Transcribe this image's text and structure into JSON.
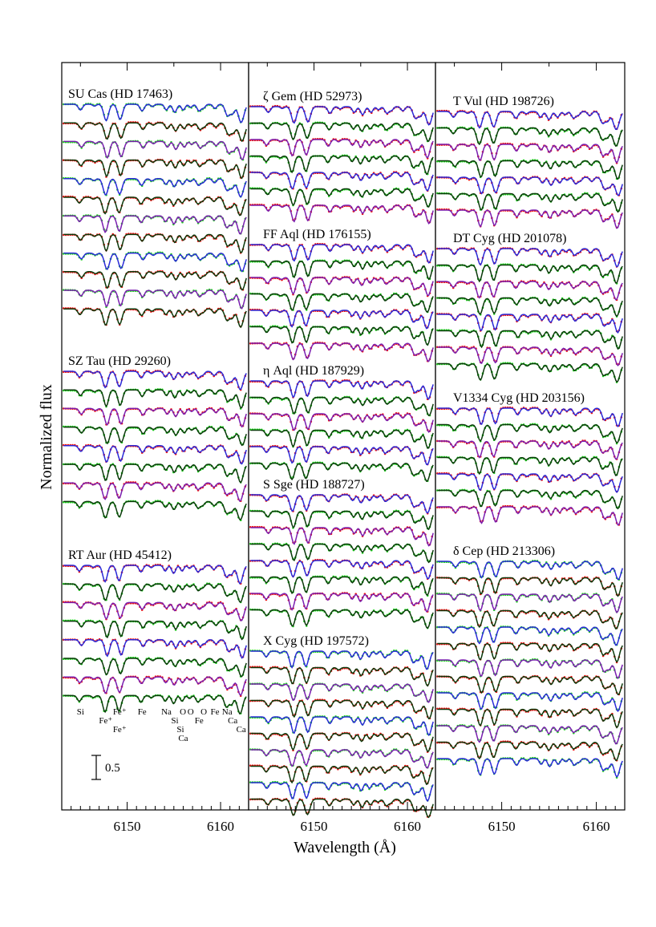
{
  "figure": {
    "ylabel": "Normalized flux",
    "xlabel": "Wavelength (Å)",
    "scale_bar_label": "0.5"
  },
  "colors": {
    "observed_green": "#1fd11f",
    "observed_red": "#ee1111",
    "model_blue": "#2a2ad8",
    "model_purple": "#7a1fb0",
    "model_dark": "#0c3a0c",
    "axes": "#000000"
  },
  "chart_data": [
    {
      "type": "line",
      "panel": "left",
      "xlim": [
        6143,
        6163
      ],
      "xticks": [
        6150,
        6160
      ],
      "xtick_labels": [
        "6150",
        "6160"
      ],
      "groups": [
        {
          "name": "SU Cas (HD 17463)",
          "n_spectra": 12,
          "ref_color": "green"
        },
        {
          "name": "SZ Tau (HD 29260)",
          "n_spectra": 8,
          "ref_color": "red"
        },
        {
          "name": "RT Aur (HD 45412)",
          "n_spectra": 8,
          "ref_color": "red"
        }
      ],
      "line_ids": [
        {
          "label": "Si",
          "wavelength": 6145.0
        },
        {
          "label": "Fe⁺",
          "wavelength": 6147.7
        },
        {
          "label": "Fe⁺",
          "wavelength": 6149.2
        },
        {
          "label": "Fe⁺",
          "wavelength": 6149.2
        },
        {
          "label": "Fe",
          "wavelength": 6151.6
        },
        {
          "label": "Na",
          "wavelength": 6154.2
        },
        {
          "label": "Si",
          "wavelength": 6155.1
        },
        {
          "label": "O",
          "wavelength": 6155.97
        },
        {
          "label": "Si",
          "wavelength": 6155.7
        },
        {
          "label": "Ca",
          "wavelength": 6156.0
        },
        {
          "label": "O",
          "wavelength": 6156.8
        },
        {
          "label": "O",
          "wavelength": 6158.2
        },
        {
          "label": "Fe",
          "wavelength": 6157.7
        },
        {
          "label": "Fe",
          "wavelength": 6159.4
        },
        {
          "label": "Na",
          "wavelength": 6160.7
        },
        {
          "label": "Ca",
          "wavelength": 6161.3
        },
        {
          "label": "Ca",
          "wavelength": 6162.2
        }
      ]
    },
    {
      "type": "line",
      "panel": "middle",
      "xlim": [
        6143,
        6163
      ],
      "xticks": [
        6150,
        6160
      ],
      "xtick_labels": [
        "6150",
        "6160"
      ],
      "groups": [
        {
          "name": "ζ Gem (HD 52973)",
          "n_spectra": 7,
          "ref_color": "red"
        },
        {
          "name": "FF Aql (HD 176155)",
          "n_spectra": 7,
          "ref_color": "red"
        },
        {
          "name": "η Aql (HD 187929)",
          "n_spectra": 6,
          "ref_color": "red"
        },
        {
          "name": "S Sge (HD 188727)",
          "n_spectra": 8,
          "ref_color": "red"
        },
        {
          "name": "X Cyg (HD 197572)",
          "n_spectra": 10,
          "ref_color": "green"
        }
      ]
    },
    {
      "type": "line",
      "panel": "right",
      "xlim": [
        6143,
        6163
      ],
      "xticks": [
        6150,
        6160
      ],
      "xtick_labels": [
        "6150",
        "6160"
      ],
      "groups": [
        {
          "name": "T Vul (HD 198726)",
          "n_spectra": 7,
          "ref_color": "red"
        },
        {
          "name": "DT Cyg (HD 201078)",
          "n_spectra": 8,
          "ref_color": "red"
        },
        {
          "name": "V1334 Cyg (HD 203156)",
          "n_spectra": 7,
          "ref_color": "red"
        },
        {
          "name": "δ Cep (HD 213306)",
          "n_spectra": 13,
          "ref_color": "green"
        }
      ]
    }
  ]
}
